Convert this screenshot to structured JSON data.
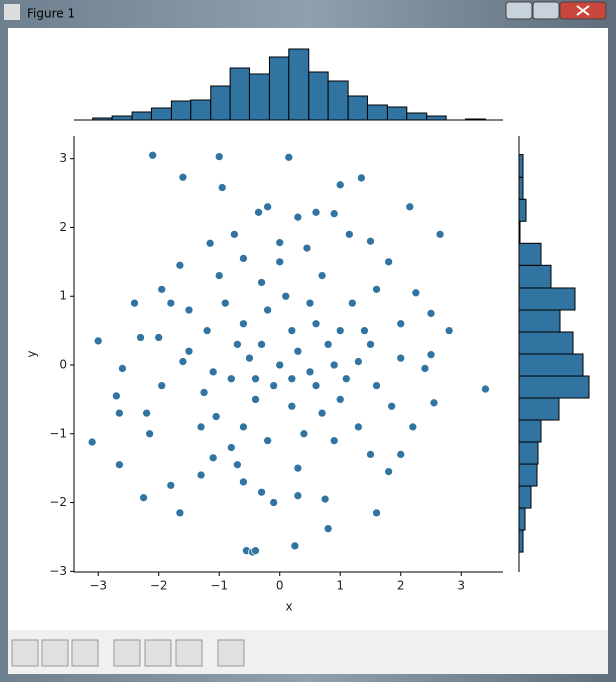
{
  "window": {
    "title": "Figure 1"
  },
  "chart_data": [
    {
      "type": "scatter",
      "x_label": "x",
      "y_label": "y",
      "color": "#3274a1",
      "xlim": [
        -3.4,
        3.69
      ],
      "ylim": [
        -3.01,
        3.33
      ],
      "xticks": [
        {
          "value": -3,
          "label": "−3"
        },
        {
          "value": -2,
          "label": "−2"
        },
        {
          "value": -1,
          "label": "−1"
        },
        0,
        1,
        2,
        3
      ],
      "yticks": [
        {
          "value": -3,
          "label": "−3"
        },
        {
          "value": -2,
          "label": "−2"
        },
        {
          "value": -1,
          "label": "−1"
        },
        0,
        1,
        2,
        3
      ],
      "x": [
        -2.1,
        -1.0,
        -1.6,
        -0.95,
        0.15,
        1.0,
        1.35,
        -0.2,
        -0.35,
        0.3,
        0.6,
        0.9,
        2.15,
        2.65,
        -0.75,
        -1.15,
        -0.6,
        0.0,
        0.45,
        1.15,
        1.5,
        -1.65,
        -1.95,
        -2.4,
        -3.0,
        -2.6,
        -2.7,
        -2.65,
        -3.1,
        -2.65,
        -2.25,
        -1.65,
        -1.8,
        -2.2,
        -2.15,
        -1.95,
        -1.6,
        -1.25,
        -1.05,
        -1.1,
        -1.3,
        -0.7,
        -0.6,
        -0.3,
        -0.1,
        0.3,
        0.75,
        0.8,
        0.25,
        -0.55,
        -0.45,
        -0.4,
        1.6,
        1.8,
        1.5,
        2.0,
        1.3,
        2.2,
        2.55,
        1.85,
        3.4,
        2.4,
        2.5,
        1.3,
        1.5,
        2.0,
        2.5,
        2.25,
        2.0,
        1.6,
        1.0,
        0.5,
        0.8,
        0.3,
        0.0,
        -0.3,
        -0.6,
        -0.9,
        -1.2,
        -1.5,
        -0.8,
        -0.4,
        0.2,
        0.6,
        1.0,
        0.4,
        -0.2,
        -0.6,
        0.9,
        0.1,
        -0.3,
        0.7,
        1.2,
        -1.0,
        -1.5,
        0.2,
        -0.1,
        0.5,
        -0.5,
        1.1,
        -1.1,
        0.3,
        -0.8,
        1.6,
        -1.8,
        -2.0,
        -2.3,
        1.8,
        2.8,
        0.0,
        -0.2,
        0.6,
        -0.7,
        0.9,
        -0.4,
        0.2,
        1.4,
        -1.3,
        0.7
      ],
      "y": [
        3.05,
        3.03,
        2.73,
        2.58,
        3.02,
        2.62,
        2.72,
        2.3,
        2.22,
        2.15,
        2.22,
        2.2,
        2.3,
        1.9,
        1.9,
        1.77,
        1.55,
        1.78,
        1.7,
        1.9,
        1.8,
        1.45,
        1.1,
        0.9,
        0.35,
        -0.05,
        -0.45,
        -0.7,
        -1.12,
        -1.45,
        -1.93,
        -2.15,
        -1.75,
        -0.7,
        -1.0,
        -0.3,
        0.05,
        -0.4,
        -0.75,
        -1.35,
        -1.6,
        -1.45,
        -1.7,
        -1.85,
        -2.0,
        -1.9,
        -1.95,
        -2.38,
        -2.63,
        -2.7,
        -2.72,
        -2.7,
        -2.15,
        -1.55,
        -1.3,
        -1.3,
        -0.9,
        -0.9,
        -0.55,
        -0.6,
        -0.35,
        -0.05,
        0.15,
        0.05,
        0.3,
        0.1,
        0.75,
        1.05,
        0.6,
        1.1,
        0.5,
        0.9,
        0.3,
        0.2,
        0.0,
        0.3,
        0.6,
        0.9,
        0.5,
        0.2,
        -0.2,
        -0.5,
        -0.6,
        -0.3,
        -0.5,
        -1.0,
        -1.1,
        -0.9,
        -1.1,
        1.0,
        1.2,
        1.3,
        0.9,
        1.3,
        0.8,
        0.5,
        -0.3,
        -0.1,
        0.1,
        -0.2,
        -0.1,
        -1.5,
        -1.2,
        -0.3,
        0.9,
        0.4,
        0.4,
        1.5,
        0.5,
        1.5,
        0.8,
        0.6,
        0.3,
        0.0,
        -0.2,
        -0.2,
        0.5,
        -0.9,
        -0.7
      ]
    },
    {
      "type": "histogram",
      "color": "#3274a1",
      "xlim": [
        -3.4,
        3.69
      ],
      "ylim": [
        0,
        90
      ],
      "bins": [
        -3.09,
        -2.77,
        -2.44,
        -2.12,
        -1.79,
        -1.47,
        -1.14,
        -0.82,
        -0.5,
        -0.17,
        0.15,
        0.48,
        0.8,
        1.13,
        1.45,
        1.78,
        2.1,
        2.43,
        2.75,
        3.07,
        3.4
      ],
      "values": [
        2,
        4,
        8,
        12,
        19,
        20,
        34,
        52,
        46,
        63,
        71,
        48,
        39,
        24,
        15,
        13,
        7,
        4,
        0,
        1
      ]
    },
    {
      "type": "histogram",
      "orientation": "horizontal",
      "color": "#3274a1",
      "xlim": [
        0,
        90
      ],
      "ylim": [
        -3.01,
        3.33
      ],
      "bins": [
        -2.72,
        -2.4,
        -2.08,
        -1.76,
        -1.44,
        -1.12,
        -0.8,
        -0.48,
        -0.16,
        0.16,
        0.48,
        0.8,
        1.12,
        1.45,
        1.77,
        2.09,
        2.41,
        2.73,
        3.06
      ],
      "values": [
        4,
        6,
        12,
        18,
        19,
        22,
        40,
        70,
        64,
        54,
        41,
        56,
        32,
        22,
        1,
        7,
        4,
        4
      ]
    }
  ]
}
